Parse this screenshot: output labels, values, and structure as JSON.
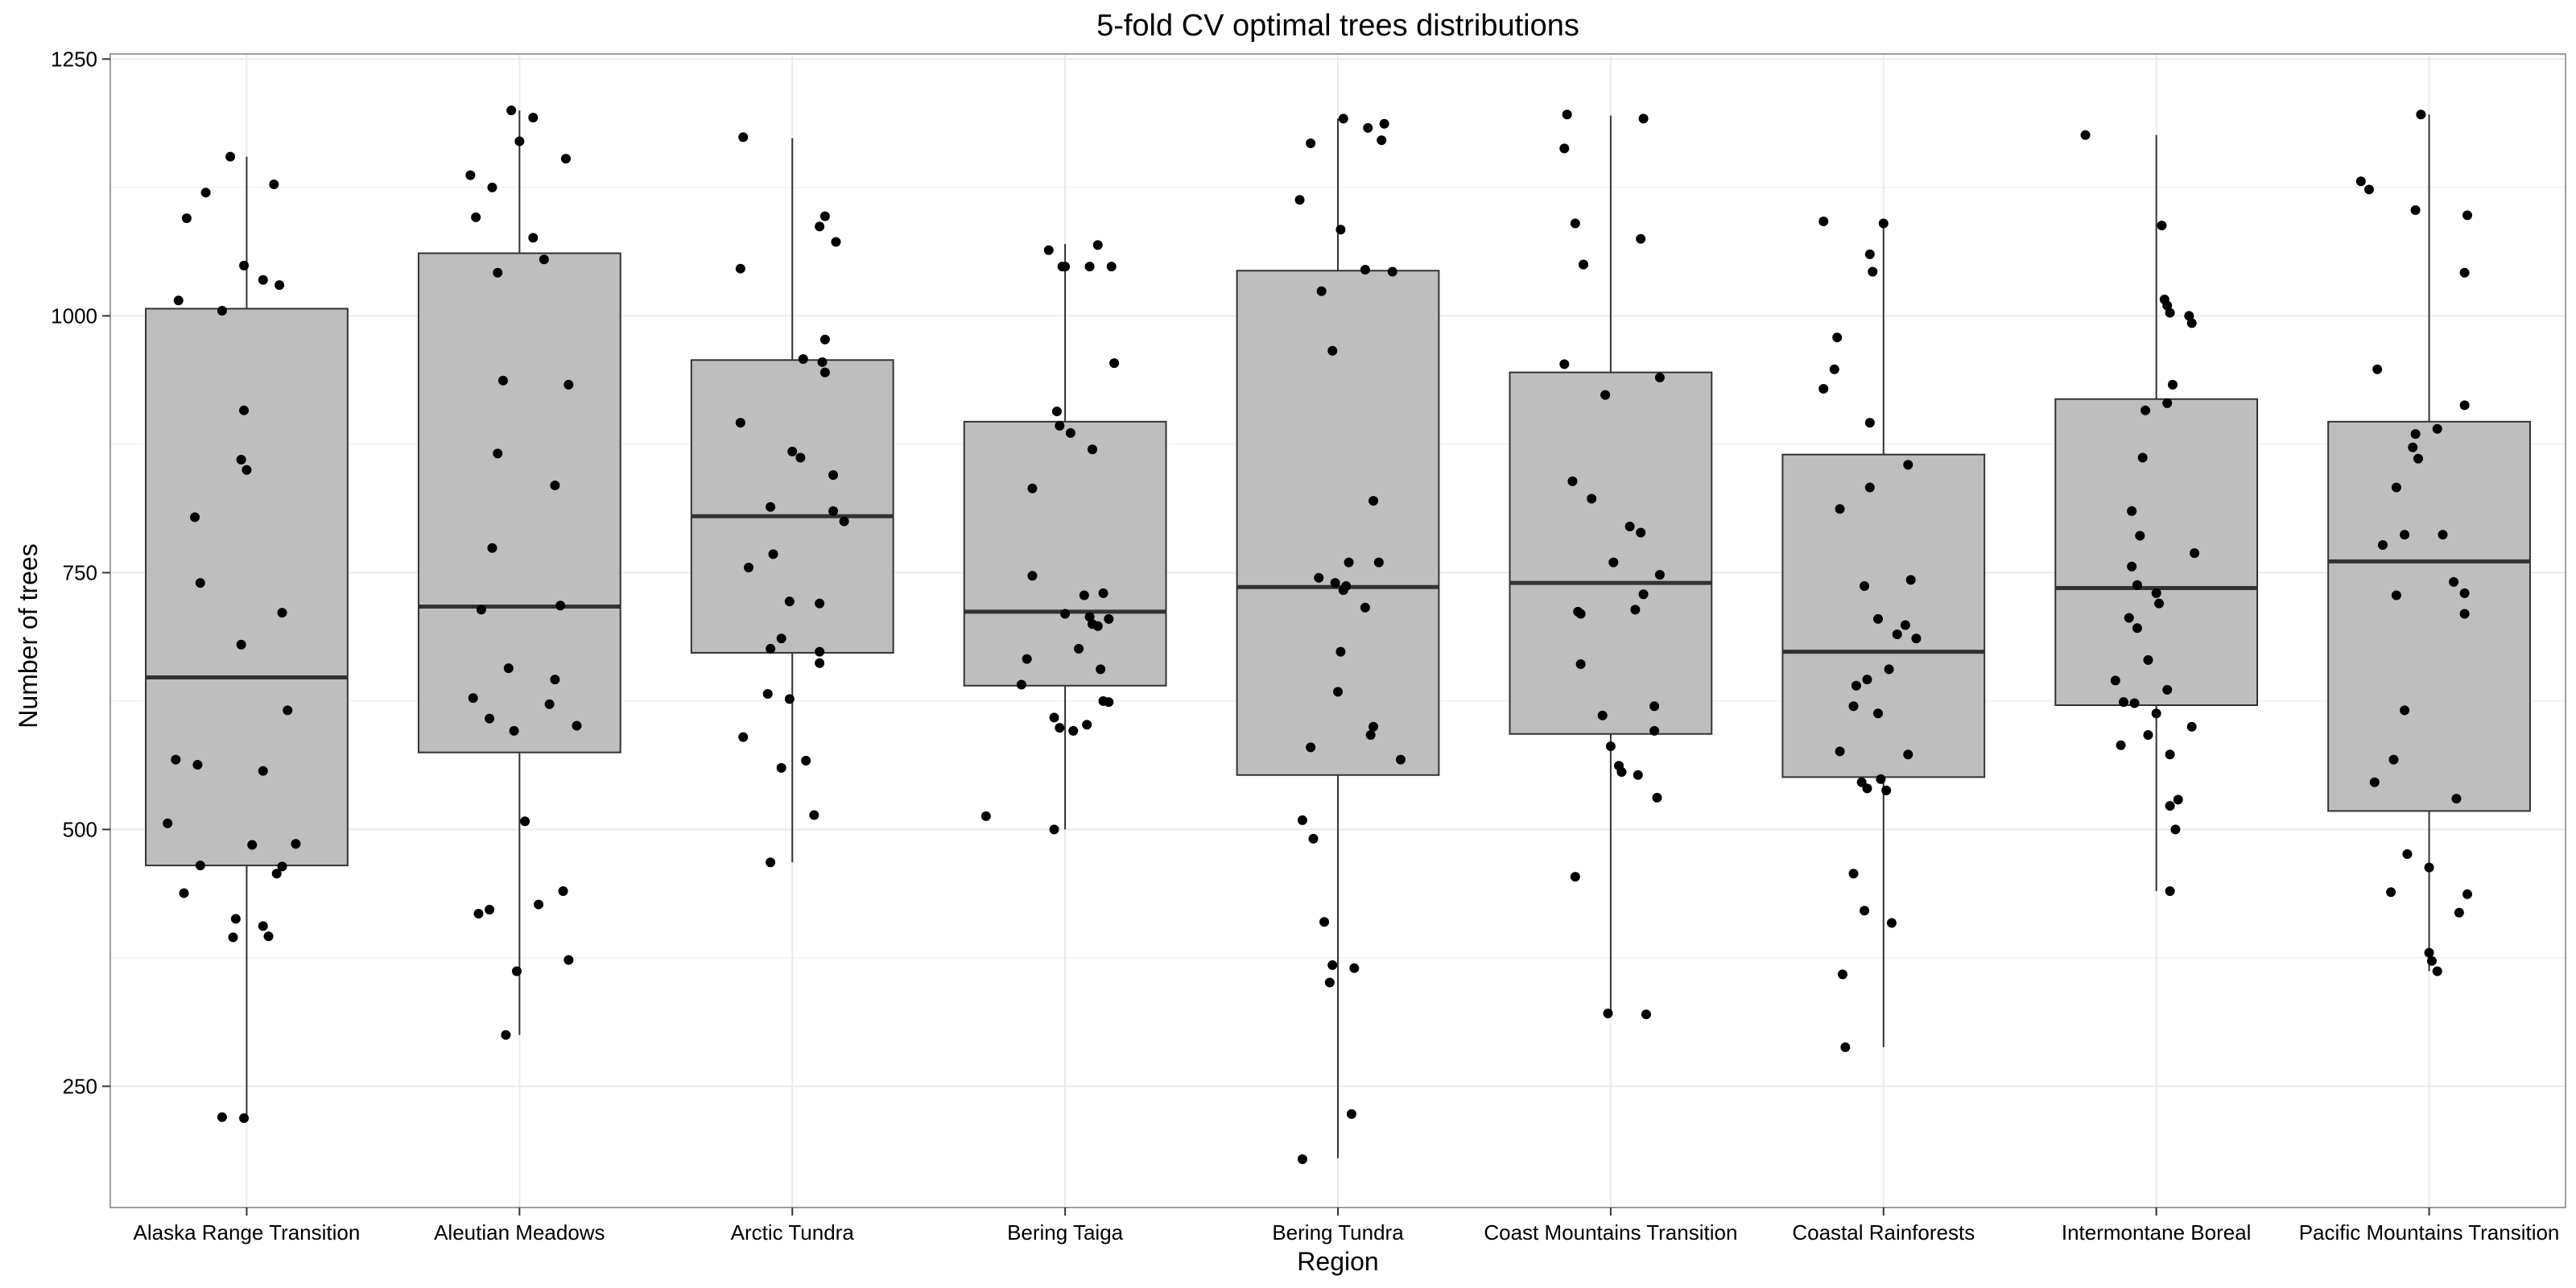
{
  "chart_data": {
    "type": "box",
    "title": "5-fold CV optimal trees distributions",
    "xlabel": "Region",
    "ylabel": "Number of trees",
    "ylim": [
      132,
      1255
    ],
    "yticks": [
      250,
      500,
      750,
      1000,
      1250
    ],
    "grid": true,
    "colors": {
      "box_fill": "#bebebe",
      "box_stroke": "#333333",
      "point": "#000000",
      "grid": "#ebebeb",
      "panel_border": "#7f7f7f"
    },
    "categories": [
      "Alaska Range Transition",
      "Aleutian Meadows",
      "Arctic Tundra",
      "Bering Taiga",
      "Bering Tundra",
      "Coast Mountains Transition",
      "Coastal Rainforests",
      "Intermontane Boreal",
      "Pacific Mountains Transition"
    ],
    "boxes": [
      {
        "q1": 465,
        "median": 648,
        "q3": 1007,
        "whisker_low": 220,
        "whisker_high": 1155
      },
      {
        "q1": 575,
        "median": 717,
        "q3": 1061,
        "whisker_low": 300,
        "whisker_high": 1200
      },
      {
        "q1": 672,
        "median": 805,
        "q3": 957,
        "whisker_low": 468,
        "whisker_high": 1173
      },
      {
        "q1": 640,
        "median": 712,
        "q3": 897,
        "whisker_low": 500,
        "whisker_high": 1070
      },
      {
        "q1": 553,
        "median": 736,
        "q3": 1044,
        "whisker_low": 180,
        "whisker_high": 1192
      },
      {
        "q1": 593,
        "median": 740,
        "q3": 945,
        "whisker_low": 320,
        "whisker_high": 1195
      },
      {
        "q1": 551,
        "median": 673,
        "q3": 865,
        "whisker_low": 288,
        "whisker_high": 1090
      },
      {
        "q1": 621,
        "median": 735,
        "q3": 919,
        "whisker_low": 440,
        "whisker_high": 1176
      },
      {
        "q1": 518,
        "median": 761,
        "q3": 897,
        "whisker_low": 362,
        "whisker_high": 1196
      }
    ],
    "points": [
      [
        [
          -0.25,
          1015
        ],
        [
          -0.22,
          1095
        ],
        [
          -0.15,
          1120
        ],
        [
          -0.06,
          1155
        ],
        [
          0.1,
          1128
        ],
        [
          0.06,
          1035
        ],
        [
          0.12,
          1030
        ],
        [
          -0.01,
          1049
        ],
        [
          -0.09,
          1005
        ],
        [
          -0.01,
          908
        ],
        [
          -0.02,
          860
        ],
        [
          0.0,
          850
        ],
        [
          -0.19,
          804
        ],
        [
          -0.17,
          740
        ],
        [
          0.13,
          711
        ],
        [
          -0.02,
          680
        ],
        [
          0.15,
          616
        ],
        [
          -0.26,
          568
        ],
        [
          -0.18,
          563
        ],
        [
          0.06,
          557
        ],
        [
          -0.29,
          506
        ],
        [
          0.18,
          486
        ],
        [
          0.02,
          485
        ],
        [
          0.11,
          457
        ],
        [
          0.13,
          464
        ],
        [
          -0.17,
          465
        ],
        [
          -0.23,
          438
        ],
        [
          -0.04,
          413
        ],
        [
          0.06,
          406
        ],
        [
          0.08,
          396
        ],
        [
          -0.05,
          395
        ],
        [
          -0.09,
          220
        ],
        [
          -0.01,
          219
        ]
      ],
      [
        [
          -0.18,
          1137
        ],
        [
          -0.1,
          1125
        ],
        [
          0.0,
          1170
        ],
        [
          -0.03,
          1200
        ],
        [
          0.05,
          1193
        ],
        [
          0.17,
          1153
        ],
        [
          -0.16,
          1096
        ],
        [
          0.05,
          1076
        ],
        [
          0.09,
          1055
        ],
        [
          -0.08,
          1042
        ],
        [
          -0.06,
          937
        ],
        [
          0.18,
          933
        ],
        [
          -0.08,
          866
        ],
        [
          0.13,
          835
        ],
        [
          -0.1,
          774
        ],
        [
          -0.14,
          714
        ],
        [
          0.15,
          718
        ],
        [
          -0.04,
          657
        ],
        [
          -0.17,
          628
        ],
        [
          0.13,
          646
        ],
        [
          -0.11,
          608
        ],
        [
          -0.02,
          596
        ],
        [
          0.11,
          622
        ],
        [
          0.21,
          601
        ],
        [
          0.02,
          508
        ],
        [
          -0.15,
          418
        ],
        [
          -0.11,
          422
        ],
        [
          0.07,
          427
        ],
        [
          0.16,
          440
        ],
        [
          0.18,
          373
        ],
        [
          -0.01,
          362
        ],
        [
          -0.05,
          300
        ]
      ],
      [
        [
          -0.18,
          1174
        ],
        [
          -0.19,
          1046
        ],
        [
          0.12,
          1097
        ],
        [
          0.1,
          1087
        ],
        [
          0.16,
          1072
        ],
        [
          0.12,
          977
        ],
        [
          0.04,
          958
        ],
        [
          0.11,
          955
        ],
        [
          0.12,
          945
        ],
        [
          -0.19,
          896
        ],
        [
          -0.0,
          868
        ],
        [
          0.03,
          862
        ],
        [
          0.15,
          845
        ],
        [
          -0.08,
          814
        ],
        [
          0.15,
          810
        ],
        [
          0.19,
          800
        ],
        [
          -0.07,
          768
        ],
        [
          -0.16,
          755
        ],
        [
          -0.01,
          722
        ],
        [
          0.1,
          720
        ],
        [
          -0.08,
          676
        ],
        [
          -0.04,
          686
        ],
        [
          0.1,
          673
        ],
        [
          0.1,
          662
        ],
        [
          -0.09,
          632
        ],
        [
          -0.01,
          627
        ],
        [
          -0.18,
          590
        ],
        [
          0.05,
          567
        ],
        [
          -0.04,
          560
        ],
        [
          0.08,
          514
        ],
        [
          -0.08,
          468
        ]
      ],
      [
        [
          -0.06,
          1064
        ],
        [
          -0.0,
          1048
        ],
        [
          -0.01,
          1048
        ],
        [
          0.12,
          1069
        ],
        [
          0.17,
          1048
        ],
        [
          0.09,
          1048
        ],
        [
          0.18,
          954
        ],
        [
          -0.03,
          907
        ],
        [
          -0.02,
          893
        ],
        [
          0.02,
          886
        ],
        [
          0.1,
          870
        ],
        [
          -0.12,
          832
        ],
        [
          -0.12,
          747
        ],
        [
          0.0,
          710
        ],
        [
          0.07,
          728
        ],
        [
          0.14,
          730
        ],
        [
          0.09,
          707
        ],
        [
          0.1,
          700
        ],
        [
          0.16,
          705
        ],
        [
          0.12,
          698
        ],
        [
          0.05,
          676
        ],
        [
          -0.14,
          666
        ],
        [
          0.13,
          656
        ],
        [
          -0.16,
          641
        ],
        [
          0.16,
          624
        ],
        [
          0.14,
          625
        ],
        [
          -0.04,
          609
        ],
        [
          -0.02,
          599
        ],
        [
          0.03,
          596
        ],
        [
          0.08,
          602
        ],
        [
          -0.29,
          513
        ],
        [
          -0.04,
          500
        ]
      ],
      [
        [
          -0.14,
          1113
        ],
        [
          -0.1,
          1168
        ],
        [
          0.02,
          1192
        ],
        [
          0.11,
          1183
        ],
        [
          0.17,
          1187
        ],
        [
          0.16,
          1171
        ],
        [
          0.1,
          1045
        ],
        [
          0.2,
          1043
        ],
        [
          0.01,
          1084
        ],
        [
          -0.06,
          1024
        ],
        [
          -0.02,
          966
        ],
        [
          0.13,
          820
        ],
        [
          -0.07,
          745
        ],
        [
          0.04,
          760
        ],
        [
          0.15,
          760
        ],
        [
          -0.01,
          740
        ],
        [
          0.03,
          737
        ],
        [
          0.02,
          733
        ],
        [
          0.1,
          716
        ],
        [
          0.01,
          673
        ],
        [
          0.0,
          634
        ],
        [
          0.13,
          600
        ],
        [
          0.12,
          592
        ],
        [
          -0.1,
          580
        ],
        [
          0.23,
          568
        ],
        [
          -0.13,
          509
        ],
        [
          -0.09,
          491
        ],
        [
          -0.05,
          410
        ],
        [
          0.06,
          365
        ],
        [
          -0.02,
          368
        ],
        [
          -0.03,
          351
        ],
        [
          0.05,
          223
        ],
        [
          -0.13,
          179
        ]
      ],
      [
        [
          -0.16,
          1196
        ],
        [
          -0.17,
          1163
        ],
        [
          -0.13,
          1090
        ],
        [
          -0.1,
          1050
        ],
        [
          -0.1,
          1050
        ],
        [
          0.12,
          1192
        ],
        [
          0.11,
          1075
        ],
        [
          -0.17,
          953
        ],
        [
          -0.02,
          923
        ],
        [
          0.18,
          940
        ],
        [
          -0.14,
          839
        ],
        [
          -0.07,
          822
        ],
        [
          0.07,
          795
        ],
        [
          0.11,
          789
        ],
        [
          0.01,
          760
        ],
        [
          0.18,
          748
        ],
        [
          0.12,
          729
        ],
        [
          -0.12,
          712
        ],
        [
          -0.11,
          710
        ],
        [
          0.09,
          714
        ],
        [
          -0.11,
          661
        ],
        [
          -0.03,
          611
        ],
        [
          0.16,
          620
        ],
        [
          0.16,
          596
        ],
        [
          0.0,
          581
        ],
        [
          0.03,
          562
        ],
        [
          0.04,
          556
        ],
        [
          0.1,
          553
        ],
        [
          0.17,
          531
        ],
        [
          -0.13,
          454
        ],
        [
          -0.01,
          321
        ],
        [
          0.13,
          320
        ]
      ],
      [
        [
          -0.22,
          1092
        ],
        [
          -0.04,
          1043
        ],
        [
          0.0,
          1090
        ],
        [
          -0.05,
          1060
        ],
        [
          -0.17,
          979
        ],
        [
          -0.22,
          929
        ],
        [
          -0.05,
          896
        ],
        [
          -0.18,
          948
        ],
        [
          -0.16,
          812
        ],
        [
          -0.05,
          833
        ],
        [
          0.09,
          855
        ],
        [
          -0.07,
          737
        ],
        [
          0.1,
          743
        ],
        [
          -0.02,
          705
        ],
        [
          0.08,
          699
        ],
        [
          0.05,
          690
        ],
        [
          0.12,
          686
        ],
        [
          -0.06,
          646
        ],
        [
          -0.1,
          640
        ],
        [
          0.02,
          656
        ],
        [
          -0.11,
          620
        ],
        [
          -0.02,
          613
        ],
        [
          0.09,
          573
        ],
        [
          -0.16,
          576
        ],
        [
          -0.01,
          549
        ],
        [
          -0.08,
          546
        ],
        [
          0.01,
          538
        ],
        [
          -0.06,
          540
        ],
        [
          -0.11,
          457
        ],
        [
          -0.07,
          421
        ],
        [
          0.03,
          409
        ],
        [
          -0.15,
          359
        ],
        [
          -0.14,
          288
        ]
      ],
      [
        [
          -0.26,
          1176
        ],
        [
          0.02,
          1088
        ],
        [
          0.05,
          1003
        ],
        [
          0.04,
          1010
        ],
        [
          0.03,
          1016
        ],
        [
          0.12,
          1000
        ],
        [
          0.13,
          993
        ],
        [
          0.06,
          933
        ],
        [
          -0.04,
          908
        ],
        [
          0.04,
          915
        ],
        [
          -0.05,
          862
        ],
        [
          -0.09,
          810
        ],
        [
          -0.06,
          786
        ],
        [
          -0.09,
          756
        ],
        [
          0.14,
          769
        ],
        [
          -0.07,
          738
        ],
        [
          0.0,
          730
        ],
        [
          0.01,
          720
        ],
        [
          -0.1,
          706
        ],
        [
          -0.07,
          696
        ],
        [
          -0.15,
          645
        ],
        [
          -0.03,
          665
        ],
        [
          0.04,
          636
        ],
        [
          -0.12,
          624
        ],
        [
          -0.08,
          623
        ],
        [
          0.0,
          613
        ],
        [
          0.13,
          600
        ],
        [
          -0.03,
          592
        ],
        [
          0.05,
          573
        ],
        [
          -0.13,
          582
        ],
        [
          0.05,
          523
        ],
        [
          0.08,
          529
        ],
        [
          0.07,
          500
        ],
        [
          0.05,
          440
        ]
      ],
      [
        [
          -0.25,
          1131
        ],
        [
          -0.22,
          1123
        ],
        [
          -0.03,
          1196
        ],
        [
          0.14,
          1098
        ],
        [
          0.13,
          1042
        ],
        [
          -0.05,
          1103
        ],
        [
          -0.19,
          948
        ],
        [
          0.13,
          913
        ],
        [
          0.03,
          890
        ],
        [
          -0.12,
          833
        ],
        [
          -0.04,
          861
        ],
        [
          -0.06,
          872
        ],
        [
          -0.05,
          885
        ],
        [
          0.05,
          787
        ],
        [
          -0.09,
          787
        ],
        [
          -0.17,
          777
        ],
        [
          -0.12,
          728
        ],
        [
          0.09,
          741
        ],
        [
          0.13,
          730
        ],
        [
          0.13,
          710
        ],
        [
          -0.09,
          616
        ],
        [
          -0.13,
          568
        ],
        [
          -0.2,
          546
        ],
        [
          0.1,
          530
        ],
        [
          -0.08,
          476
        ],
        [
          0.0,
          463
        ],
        [
          -0.14,
          439
        ],
        [
          0.14,
          437
        ],
        [
          0.11,
          419
        ],
        [
          0.0,
          380
        ],
        [
          0.01,
          372
        ],
        [
          0.03,
          362
        ]
      ]
    ]
  }
}
